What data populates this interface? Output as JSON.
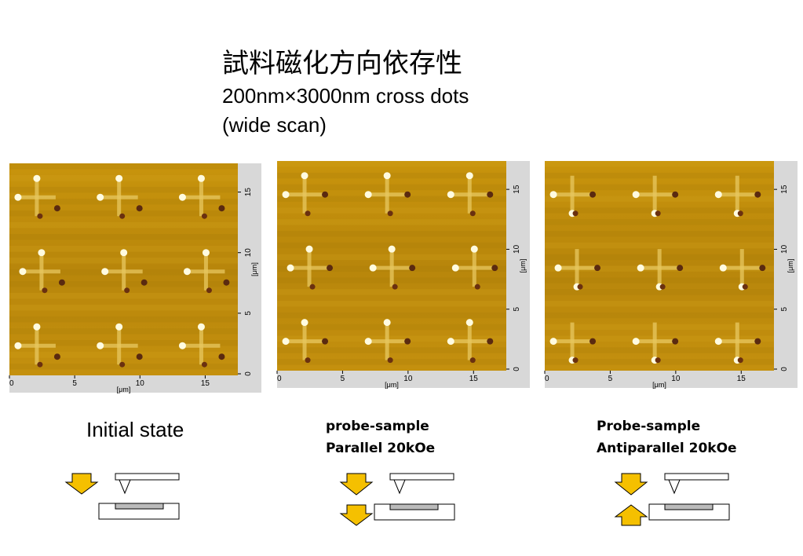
{
  "header": {
    "title": "試料磁化方向依存性",
    "subtitle": [
      "200nm×3000nm cross dots",
      "(wide scan)"
    ]
  },
  "panels": [
    {
      "caption": [
        "Initial state"
      ],
      "x_ticks": [
        "0",
        "5",
        "10",
        "15"
      ],
      "y_ticks": [
        "0",
        "5",
        "10",
        "15"
      ],
      "x_unit": "[μm]",
      "y_unit": "[μm]"
    },
    {
      "caption": [
        "probe-sample",
        "Parallel 20kOe"
      ],
      "x_ticks": [
        "0",
        "5",
        "10",
        "15"
      ],
      "y_ticks": [
        "0",
        "5",
        "10",
        "15"
      ],
      "x_unit": "[μm]",
      "y_unit": "[μm]"
    },
    {
      "caption": [
        "Probe-sample",
        "Antiparallel 20kOe"
      ],
      "x_ticks": [
        "0",
        "5",
        "10",
        "15"
      ],
      "y_ticks": [
        "0",
        "5",
        "10",
        "15"
      ],
      "x_unit": "[μm]",
      "y_unit": "[μm]"
    }
  ]
}
